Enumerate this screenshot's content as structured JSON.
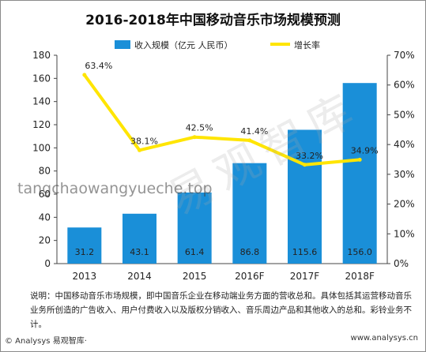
{
  "chart_data": {
    "type": "bar",
    "title": "2016-2018年中国移动音乐市场规模预测",
    "categories": [
      "2013",
      "2014",
      "2015",
      "2016F",
      "2017F",
      "2018F"
    ],
    "series": [
      {
        "name": "收入规模（亿元 人民币）",
        "type": "bar",
        "axis": "left",
        "values": [
          31.2,
          43.1,
          61.4,
          86.8,
          115.6,
          156.0
        ],
        "labels": [
          "31.2",
          "43.1",
          "61.4",
          "86.8",
          "115.6",
          "156.0"
        ],
        "color": "#1a8fd8"
      },
      {
        "name": "增长率",
        "type": "line",
        "axis": "right",
        "values": [
          63.4,
          38.1,
          42.5,
          41.4,
          33.2,
          34.9
        ],
        "labels": [
          "63.4%",
          "38.1%",
          "42.5%",
          "41.4%",
          "33.2%",
          "34.9%"
        ],
        "color": "#ffe500"
      }
    ],
    "yleft": {
      "min": 0,
      "max": 180,
      "ticks": [
        "0",
        "20",
        "40",
        "60",
        "80",
        "100",
        "120",
        "140",
        "160",
        "180"
      ]
    },
    "yright": {
      "min": 0,
      "max": 70,
      "ticks": [
        "0%",
        "10%",
        "20%",
        "30%",
        "40%",
        "50%",
        "60%",
        "70%"
      ]
    },
    "grid": false,
    "legend_position": "top-center"
  },
  "note": "说明：中国移动音乐市场规模，即中国音乐企业在移动端业务方面的营收总和。具体包括其运营移动音乐业务所创造的广告收入、用户付费收入以及版权分销收入、音乐周边产品和其他收入的总和。彩铃业务不计。",
  "footer": {
    "brand": "© Analysys 易观智库·",
    "site": "www.analysys.cn"
  },
  "watermark": {
    "text": "tangchaowangyueche.top",
    "art": "易观智库"
  },
  "colors": {
    "bar": "#1a8fd8",
    "line": "#ffe500",
    "axis": "#444444"
  }
}
